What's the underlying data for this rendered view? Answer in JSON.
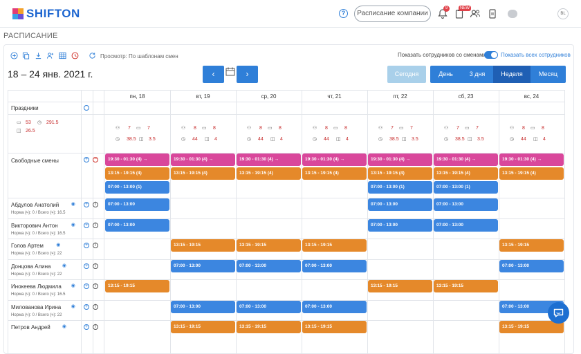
{
  "app": {
    "logo_text": "SHIFTON"
  },
  "topbar": {
    "company_button": "Расписание компании",
    "notification_count": "9",
    "new_badge": "NEW",
    "user_initials": "BL",
    "icons": [
      "help-icon",
      "bell-icon",
      "clipboard-icon",
      "users-icon",
      "document-icon"
    ]
  },
  "page": {
    "section_title": "РАСПИСАНИЕ"
  },
  "toolbar": {
    "view_label": "Просмотр: По шаблонам смен",
    "show_employees_label": "Показать сотрудников со сменами",
    "show_all_label": "Показать всех сотрудников",
    "toggle_on": true,
    "icons": [
      "add-icon",
      "copy-icon",
      "download-icon",
      "add-user-icon",
      "calendar-grid-icon",
      "clock-icon",
      "refresh-icon"
    ]
  },
  "navigation": {
    "date_range": "18 – 24 янв. 2021 г.",
    "prev": "‹",
    "next": "›",
    "today": "Сегодня",
    "ranges": [
      "День",
      "3 дня",
      "Неделя",
      "Месяц"
    ],
    "active_range": "Неделя"
  },
  "days": [
    "пн, 18",
    "вт, 19",
    "ср, 20",
    "чт, 21",
    "пт, 22",
    "сб, 23",
    "вс, 24"
  ],
  "holidays_label": "Праздники",
  "summary": {
    "calendar_total": "53",
    "hours_total": "291.5",
    "cost_a": "38.5",
    "cost_b": "26.5"
  },
  "day_stats": [
    {
      "users": "7",
      "cal": "7",
      "hours": "38.5",
      "cost": "3.5"
    },
    {
      "users": "8",
      "cal": "8",
      "hours": "44",
      "cost": "4"
    },
    {
      "users": "8",
      "cal": "8",
      "hours": "44",
      "cost": "4"
    },
    {
      "users": "8",
      "cal": "8",
      "hours": "44",
      "cost": "4"
    },
    {
      "users": "7",
      "cal": "7",
      "hours": "38.5",
      "cost": "3.5"
    },
    {
      "users": "7",
      "cal": "7",
      "hours": "38.5",
      "cost": "3.5"
    },
    {
      "users": "8",
      "cal": "8",
      "hours": "44",
      "cost": "4"
    }
  ],
  "free_shifts_label": "Свободные смены",
  "free_shifts": {
    "row1": "19:30 - 01:30  (4)",
    "row2": "13:15 - 19:15  (4)",
    "row3": "07:00 - 13:00  (1)",
    "row1_days": [
      0,
      1,
      2,
      3,
      4,
      5,
      6
    ],
    "row2_days": [
      0,
      1,
      2,
      3,
      4,
      5,
      6
    ],
    "row3_days": [
      0,
      4,
      5
    ]
  },
  "norm_prefix": "Норма (ч):",
  "total_prefix": "Всего (ч):",
  "employees": [
    {
      "name": "Абдулов Анатолий",
      "norm": "0",
      "total": "16.5",
      "shift": "07:00 - 13:00",
      "color": "blue",
      "days": [
        0,
        4,
        5
      ]
    },
    {
      "name": "Викторович Антон",
      "norm": "0",
      "total": "16.5",
      "shift": "07:00 - 13:00",
      "color": "blue",
      "days": [
        0,
        4,
        5
      ]
    },
    {
      "name": "Голов Артем",
      "norm": "0",
      "total": "22",
      "shift": "13:15 - 19:15",
      "color": "orange",
      "days": [
        1,
        2,
        3,
        6
      ]
    },
    {
      "name": "Донцова Алина",
      "norm": "0",
      "total": "22",
      "shift": "07:00 - 13:00",
      "color": "blue",
      "days": [
        1,
        2,
        3,
        6
      ]
    },
    {
      "name": "Инокеева Людмила",
      "norm": "0",
      "total": "16.5",
      "shift": "13:15 - 19:15",
      "color": "orange",
      "days": [
        0,
        4,
        5
      ]
    },
    {
      "name": "Милованова Ирина",
      "norm": "0",
      "total": "22",
      "shift": "07:00 - 13:00",
      "color": "blue",
      "days": [
        1,
        2,
        3,
        6
      ]
    },
    {
      "name": "Петров Андрей",
      "norm": "",
      "total": "",
      "shift": "13:15 - 19:15",
      "color": "orange",
      "days": [
        1,
        2,
        3,
        6
      ]
    }
  ],
  "colors": {
    "accent": "#2f7fd8",
    "pink": "#d9479b",
    "orange": "#e5892a",
    "blue": "#3c86e0"
  }
}
